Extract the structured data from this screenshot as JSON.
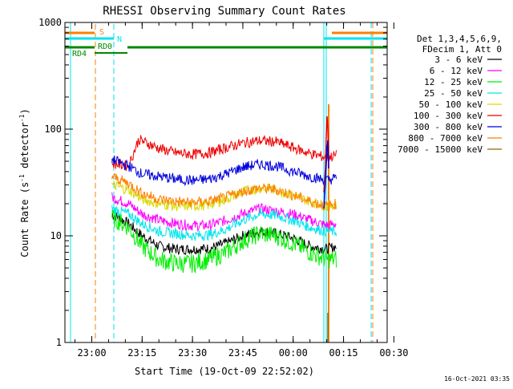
{
  "chart_data": {
    "type": "line",
    "title": "RHESSI Observing Summary Count Rates",
    "xlabel": "Start Time (19-Oct-09 22:52:02)",
    "ylabel_main": "Count Rate (s",
    "ylabel_sup1": "-1",
    "ylabel_mid": " detector",
    "ylabel_sup2": "-1",
    "ylabel_end": ")",
    "y_scale": "log",
    "ylim": [
      1,
      1000
    ],
    "xlim": [
      "22:52",
      "00:28"
    ],
    "x_ticks": [
      "23:00",
      "23:15",
      "23:30",
      "23:45",
      "00:00",
      "00:15",
      "00:30"
    ],
    "y_ticks": [
      "1",
      "10",
      "100",
      "1000"
    ],
    "legend_position": "right",
    "legend_header": [
      "Det 1,3,4,5,6,9,",
      "FDecim 1, Att 0"
    ],
    "legend_entries": [
      "3 - 6 keV",
      "6 - 12 keV",
      "12 - 25 keV",
      "25 - 50 keV",
      "50 - 100 keV",
      "100 - 300 keV",
      "300 - 800 keV",
      "800 - 7000 keV",
      "7000 - 15000 keV"
    ],
    "series": [
      {
        "name": "3 - 6 keV",
        "color": "#000000",
        "x": [
          "23:06",
          "23:11",
          "23:15",
          "23:20",
          "23:25",
          "23:30",
          "23:35",
          "23:40",
          "23:45",
          "23:50",
          "23:55",
          "00:00",
          "00:05",
          "00:10",
          "00:13"
        ],
        "values": [
          16,
          13,
          10,
          8,
          7.5,
          7.5,
          7.6,
          8.5,
          10,
          11,
          10.5,
          9.5,
          8,
          7.5,
          8
        ]
      },
      {
        "name": "6 - 12 keV",
        "color": "#ff00ff",
        "x": [
          "23:06",
          "23:11",
          "23:15",
          "23:20",
          "23:25",
          "23:30",
          "23:35",
          "23:40",
          "23:45",
          "23:50",
          "23:55",
          "00:00",
          "00:05",
          "00:10",
          "00:13"
        ],
        "values": [
          23,
          20,
          16,
          14,
          13,
          12.5,
          12.5,
          14,
          16,
          18,
          17,
          16,
          14,
          12.5,
          13
        ]
      },
      {
        "name": "12 - 25 keV",
        "color": "#00ee00",
        "x": [
          "23:06",
          "23:11",
          "23:15",
          "23:20",
          "23:25",
          "23:30",
          "23:35",
          "23:40",
          "23:45",
          "23:50",
          "23:55",
          "00:00",
          "00:05",
          "00:10",
          "00:13"
        ],
        "values": [
          15,
          12,
          8,
          6,
          5.5,
          5.5,
          6,
          7,
          9,
          10.5,
          10,
          8.5,
          7,
          6,
          6
        ]
      },
      {
        "name": "25 - 50 keV",
        "color": "#00e5ee",
        "x": [
          "23:06",
          "23:11",
          "23:15",
          "23:20",
          "23:25",
          "23:30",
          "23:35",
          "23:40",
          "23:45",
          "23:50",
          "23:55",
          "00:00",
          "00:05",
          "00:10",
          "00:13"
        ],
        "values": [
          18,
          16,
          13,
          11,
          10.5,
          10,
          10.2,
          11.5,
          14,
          16,
          15.5,
          14,
          12,
          11,
          11
        ]
      },
      {
        "name": "50 - 100 keV",
        "color": "#d9d900",
        "x": [
          "23:06",
          "23:11",
          "23:15",
          "23:20",
          "23:25",
          "23:30",
          "23:35",
          "23:40",
          "23:45",
          "23:50",
          "23:55",
          "00:00",
          "00:05",
          "00:10",
          "00:13"
        ],
        "values": [
          30,
          27,
          22,
          20,
          19,
          19,
          19.5,
          22,
          26,
          28,
          27,
          24,
          21,
          19,
          20
        ]
      },
      {
        "name": "100 - 300 keV",
        "color": "#ee0000",
        "x": [
          "23:06",
          "23:11",
          "23:14",
          "23:20",
          "23:25",
          "23:30",
          "23:35",
          "23:40",
          "23:45",
          "23:50",
          "23:55",
          "00:00",
          "00:05",
          "00:10",
          "00:13"
        ],
        "values": [
          48,
          45,
          80,
          66,
          60,
          58,
          60,
          67,
          74,
          78,
          76,
          67,
          59,
          54,
          57
        ]
      },
      {
        "name": "300 - 800 keV",
        "color": "#0000dd",
        "x": [
          "23:06",
          "23:11",
          "23:15",
          "23:20",
          "23:25",
          "23:30",
          "23:35",
          "23:40",
          "23:45",
          "23:50",
          "23:55",
          "00:00",
          "00:05",
          "00:10",
          "00:13"
        ],
        "values": [
          52,
          45,
          38,
          36,
          34,
          33,
          34,
          38,
          44,
          47,
          45,
          40,
          36,
          33,
          35
        ]
      },
      {
        "name": "800 - 7000 keV",
        "color": "#ff7f00",
        "x": [
          "23:06",
          "23:11",
          "23:15",
          "23:20",
          "23:25",
          "23:30",
          "23:35",
          "23:40",
          "23:45",
          "23:50",
          "23:55",
          "00:00",
          "00:05",
          "00:10",
          "00:13"
        ],
        "values": [
          36,
          31,
          25,
          22,
          21,
          20.5,
          21,
          23,
          26,
          28,
          27,
          24,
          21,
          19,
          20
        ]
      },
      {
        "name": "7000 - 15000 keV",
        "color": "#8b6914",
        "x": [],
        "values": []
      }
    ],
    "flag_labels": {
      "s": "S",
      "n": "N",
      "rd0": "RD0",
      "rd4": "RD4"
    },
    "timestamp": "16-Oct-2021 03:35"
  }
}
